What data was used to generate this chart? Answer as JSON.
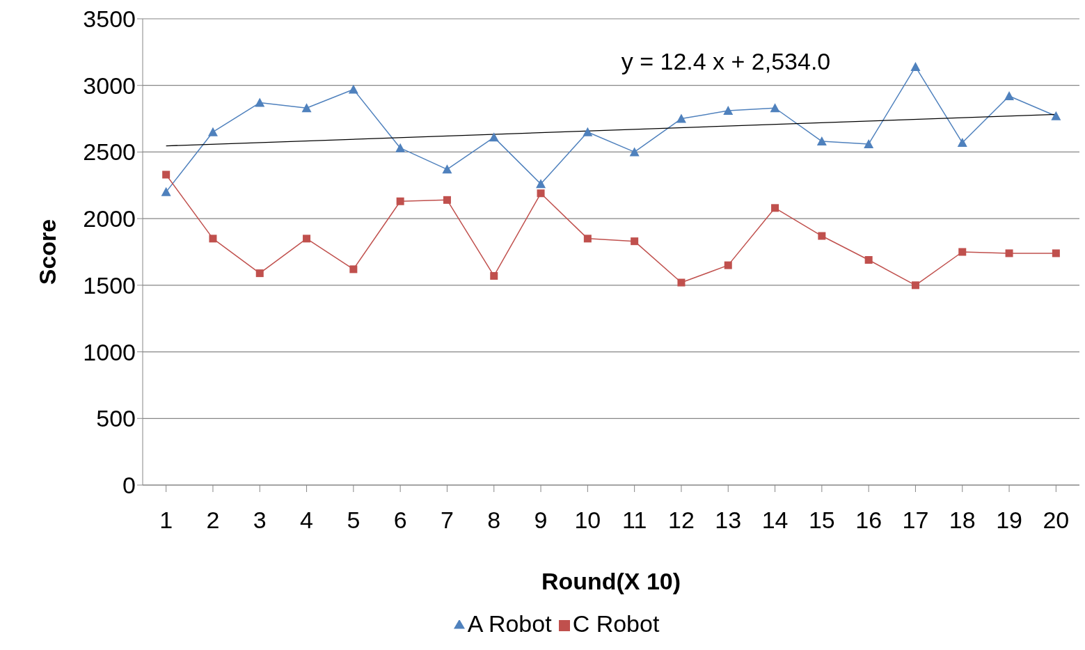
{
  "chart_data": {
    "type": "line",
    "xlabel": "Round(X 10)",
    "ylabel": "Score",
    "x": [
      1,
      2,
      3,
      4,
      5,
      6,
      7,
      8,
      9,
      10,
      11,
      12,
      13,
      14,
      15,
      16,
      17,
      18,
      19,
      20
    ],
    "series": [
      {
        "name": "A Robot",
        "color": "#4f81bd",
        "marker": "triangle",
        "values": [
          2200,
          2650,
          2870,
          2830,
          2970,
          2530,
          2370,
          2610,
          2260,
          2650,
          2500,
          2750,
          2810,
          2830,
          2580,
          2560,
          3140,
          2570,
          2920,
          2770
        ]
      },
      {
        "name": "C Robot",
        "color": "#c0504d",
        "marker": "square",
        "values": [
          2330,
          1850,
          1590,
          1850,
          1620,
          2130,
          2140,
          1570,
          2190,
          1850,
          1830,
          1520,
          1650,
          2080,
          1870,
          1690,
          1500,
          1750,
          1740,
          1740
        ]
      },
      {
        "type": "line",
        "color": "#000000",
        "marker": "none",
        "x": [
          1,
          20
        ],
        "values": [
          2546,
          2782
        ]
      }
    ],
    "annotations": [
      "y = 12.4 x + 2,534.0"
    ],
    "xlim": [
      0.5,
      20.5
    ],
    "xticks": [
      1,
      2,
      3,
      4,
      5,
      6,
      7,
      8,
      9,
      10,
      11,
      12,
      13,
      14,
      15,
      16,
      17,
      18,
      19,
      20
    ],
    "ylim": [
      0,
      3500
    ],
    "yticks": [
      0,
      500,
      1000,
      1500,
      2000,
      2500,
      3000,
      3500
    ],
    "grid": "y",
    "legend": "bottom"
  }
}
